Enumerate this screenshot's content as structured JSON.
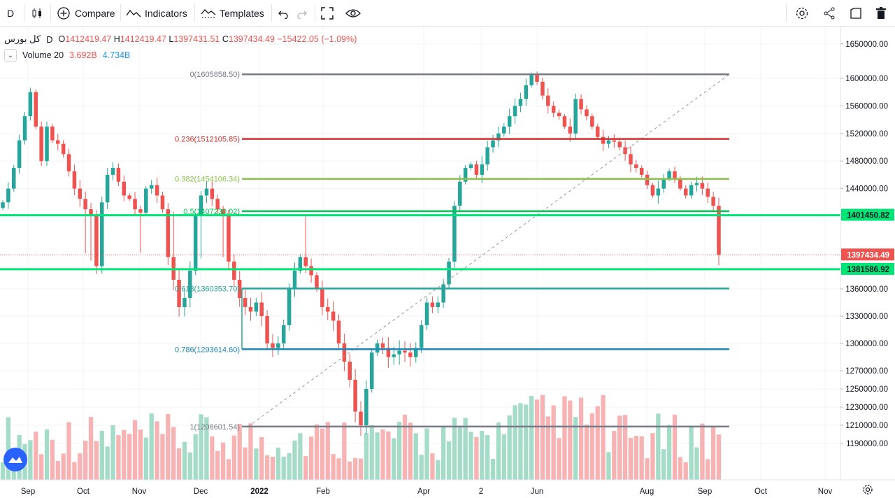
{
  "toolbar": {
    "interval": "D",
    "compare_label": "Compare",
    "indicators_label": "Indicators",
    "templates_label": "Templates"
  },
  "legend": {
    "symbol": "کل بورس",
    "interval": "D",
    "open": "1412419.47",
    "high": "1412419.47",
    "low": "1397431.51",
    "close": "1397434.49",
    "change": "−15422.05 (−1.09%)",
    "volume_label": "Volume 20",
    "volume_value": "3.692B",
    "volume_ma": "4.734B"
  },
  "chart_data": {
    "type": "candlestick",
    "y_axis_ticks": [
      1650000,
      1600000,
      1560000,
      1520000,
      1480000,
      1440000,
      1360000,
      1330000,
      1300000,
      1270000,
      1250000,
      1230000,
      1210000,
      1190000
    ],
    "x_axis_ticks": [
      "Sep",
      "Oct",
      "Nov",
      "Dec",
      "2022",
      "Feb",
      "Apr",
      "2",
      "Jun",
      "Aug",
      "Sep",
      "Oct",
      "Nov"
    ],
    "fib_levels": [
      {
        "label": "0(1605858.50)",
        "value": 1605858.5,
        "color": "#787b86"
      },
      {
        "label": "0.236(1512105.85)",
        "value": 1512105.85,
        "color": "#d32f2f"
      },
      {
        "label": "0.382(1454106.34)",
        "value": 1454106.34,
        "color": "#8bc34a"
      },
      {
        "label": "0.5(1407230.02)",
        "value": 1407230.02,
        "color": "#00c853"
      },
      {
        "label": "0.618(1360353.70)",
        "value": 1360353.7,
        "color": "#26a69a"
      },
      {
        "label": "0.786(1293614.60)",
        "value": 1293614.6,
        "color": "#1e88b5"
      },
      {
        "label": "1(1208601.54)",
        "value": 1208601.54,
        "color": "#787b86"
      }
    ],
    "horizontal_lines": [
      {
        "label": "1401450.82",
        "value": 1401450.82,
        "color": "#00e676"
      },
      {
        "label": "1381586.92",
        "value": 1381586.92,
        "color": "#00e676"
      }
    ],
    "last_price": {
      "label": "1397434.49",
      "value": 1397434.49,
      "color": "#ef5350"
    },
    "closes": [
      1420000,
      1440000,
      1470000,
      1510000,
      1545000,
      1580000,
      1530000,
      1480000,
      1530000,
      1510000,
      1505000,
      1490000,
      1465000,
      1440000,
      1425000,
      1410000,
      1400000,
      1385000,
      1420000,
      1460000,
      1470000,
      1450000,
      1430000,
      1425000,
      1410000,
      1405000,
      1440000,
      1445000,
      1430000,
      1410000,
      1395000,
      1370000,
      1340000,
      1350000,
      1380000,
      1400000,
      1430000,
      1440000,
      1425000,
      1410000,
      1400000,
      1390000,
      1370000,
      1350000,
      1340000,
      1335000,
      1345000,
      1330000,
      1300000,
      1295000,
      1300000,
      1320000,
      1360000,
      1380000,
      1395000,
      1385000,
      1375000,
      1360000,
      1340000,
      1335000,
      1325000,
      1300000,
      1280000,
      1260000,
      1225000,
      1210000,
      1250000,
      1290000,
      1300000,
      1295000,
      1285000,
      1288000,
      1292000,
      1290000,
      1285000,
      1295000,
      1320000,
      1345000,
      1340000,
      1345000,
      1365000,
      1390000,
      1415000,
      1450000,
      1470000,
      1475000,
      1460000,
      1475000,
      1500000,
      1510000,
      1520000,
      1530000,
      1545000,
      1560000,
      1570000,
      1590000,
      1605000,
      1595000,
      1575000,
      1560000,
      1550000,
      1545000,
      1530000,
      1520000,
      1570000,
      1555000,
      1545000,
      1530000,
      1515000,
      1505000,
      1510000,
      1508000,
      1500000,
      1490000,
      1475000,
      1470000,
      1460000,
      1445000,
      1430000,
      1440000,
      1455000,
      1465000,
      1455000,
      1440000,
      1430000,
      1445000,
      1448000,
      1440000,
      1428000,
      1415000,
      1397434.49
    ],
    "volume_axis": "none",
    "grid": "on",
    "price_scale": "right"
  }
}
